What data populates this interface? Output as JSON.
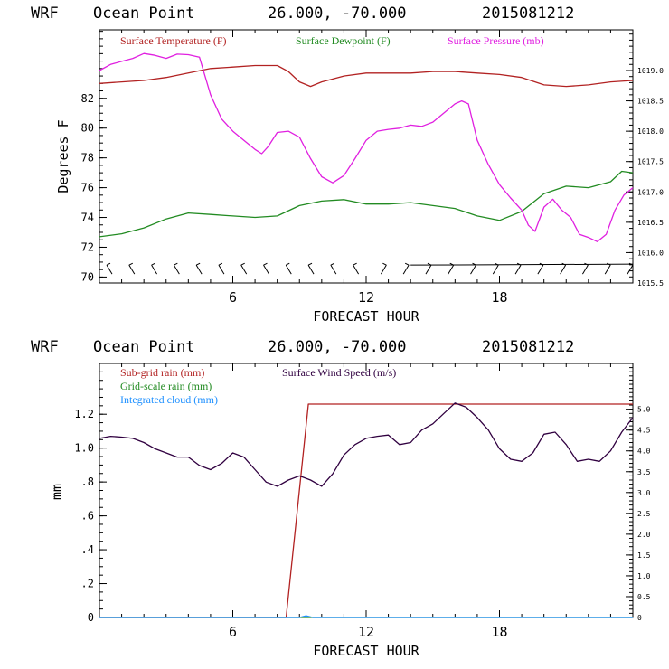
{
  "chart_data": [
    {
      "type": "line",
      "title": "WRF   Ocean Point   26.000, -70.000  2015081212",
      "title_parts": {
        "model": "WRF",
        "location": "Ocean Point",
        "coords": "26.000, -70.000",
        "date": "2015081212"
      },
      "xlabel": "FORECAST HOUR",
      "ylabel": "Degrees F",
      "xlim": [
        0,
        24
      ],
      "ylim": [
        69.6,
        86.6
      ],
      "y2lim": [
        1015.5,
        1019.67
      ],
      "x_ticks": [
        6,
        12,
        18
      ],
      "y_ticks": [
        70,
        72,
        74,
        76,
        78,
        80,
        82
      ],
      "y2_ticks": [
        {
          "value": 1015.5,
          "label": "1015.5"
        },
        {
          "value": 1016.0,
          "label": "1016.0"
        },
        {
          "value": 1016.5,
          "label": "1016.5"
        },
        {
          "value": 1017.0,
          "label": "1017.0"
        },
        {
          "value": 1017.5,
          "label": "1017.5"
        },
        {
          "value": 1018.0,
          "label": "1018.0"
        },
        {
          "value": 1018.5,
          "label": "1018.5"
        },
        {
          "value": 1019.0,
          "label": "1019.0"
        }
      ],
      "series": [
        {
          "name": "Surface Temperature (F)",
          "color": "#b22222",
          "axis": "left",
          "x": [
            0,
            1,
            2,
            3,
            4,
            5,
            6,
            7,
            8,
            8.5,
            9,
            9.5,
            10,
            11,
            12,
            13,
            14,
            15,
            16,
            17,
            18,
            19,
            20,
            21,
            22,
            23,
            24
          ],
          "y": [
            83.0,
            83.1,
            83.2,
            83.4,
            83.7,
            84.0,
            84.1,
            84.2,
            84.2,
            83.8,
            83.1,
            82.8,
            83.1,
            83.5,
            83.7,
            83.7,
            83.7,
            83.8,
            83.8,
            83.7,
            83.6,
            83.4,
            82.9,
            82.8,
            82.9,
            83.1,
            83.2
          ]
        },
        {
          "name": "Surface Dewpoint (F)",
          "color": "#228b22",
          "axis": "left",
          "x": [
            0,
            1,
            2,
            3,
            4,
            5,
            6,
            7,
            8,
            9,
            10,
            11,
            12,
            13,
            14,
            15,
            16,
            17,
            18,
            19,
            20,
            21,
            22,
            23,
            23.5,
            24
          ],
          "y": [
            72.7,
            72.9,
            73.3,
            73.9,
            74.3,
            74.2,
            74.1,
            74.0,
            74.1,
            74.8,
            75.1,
            75.2,
            74.9,
            74.9,
            75.0,
            74.8,
            74.6,
            74.1,
            73.8,
            74.4,
            75.6,
            76.1,
            76.0,
            76.4,
            77.1,
            77.0
          ]
        },
        {
          "name": "Surface Pressure (mb)",
          "color": "#e020e0",
          "axis": "right",
          "x": [
            0,
            0.5,
            1,
            1.5,
            2,
            2.5,
            3,
            3.5,
            4,
            4.5,
            5,
            5.5,
            6,
            6.5,
            7,
            7.3,
            7.6,
            8,
            8.5,
            9,
            9.5,
            10,
            10.5,
            11,
            11.5,
            12,
            12.5,
            13,
            13.5,
            14,
            14.5,
            15,
            15.5,
            16,
            16.3,
            16.6,
            17,
            17.5,
            18,
            18.5,
            19,
            19.3,
            19.6,
            20,
            20.4,
            20.8,
            21.2,
            21.6,
            22,
            22.4,
            22.8,
            23.2,
            23.6,
            24
          ],
          "y": [
            1019.0,
            1019.1,
            1019.15,
            1019.2,
            1019.28,
            1019.25,
            1019.2,
            1019.27,
            1019.26,
            1019.22,
            1018.6,
            1018.2,
            1018.0,
            1017.85,
            1017.7,
            1017.63,
            1017.75,
            1017.98,
            1018.0,
            1017.9,
            1017.55,
            1017.25,
            1017.15,
            1017.27,
            1017.55,
            1017.85,
            1018.0,
            1018.03,
            1018.05,
            1018.1,
            1018.08,
            1018.15,
            1018.3,
            1018.45,
            1018.5,
            1018.45,
            1017.85,
            1017.45,
            1017.12,
            1016.9,
            1016.7,
            1016.45,
            1016.35,
            1016.75,
            1016.88,
            1016.7,
            1016.58,
            1016.3,
            1016.25,
            1016.18,
            1016.3,
            1016.7,
            1016.95,
            1017.07
          ]
        }
      ],
      "wind_barbs": {
        "y_level": 70.5,
        "count": 24,
        "label": "wind barbs along bottom of upper panel"
      }
    },
    {
      "type": "line",
      "title": "WRF   Ocean Point   26.000, -70.000  2015081212",
      "title_parts": {
        "model": "WRF",
        "location": "Ocean Point",
        "coords": "26.000, -70.000",
        "date": "2015081212"
      },
      "xlabel": "FORECAST HOUR",
      "ylabel": "mm",
      "xlim": [
        0,
        24
      ],
      "ylim": [
        0,
        1.5
      ],
      "y2lim": [
        0,
        6.1
      ],
      "x_ticks": [
        6,
        12,
        18
      ],
      "y_ticks": [
        {
          "value": 0,
          "label": "0"
        },
        {
          "value": 0.2,
          "label": ".2"
        },
        {
          "value": 0.4,
          "label": ".4"
        },
        {
          "value": 0.6,
          "label": ".6"
        },
        {
          "value": 0.8,
          "label": ".8"
        },
        {
          "value": 1.0,
          "label": "1.0"
        },
        {
          "value": 1.2,
          "label": "1.2"
        }
      ],
      "y2_ticks": [
        {
          "value": 0,
          "label": "0"
        },
        {
          "value": 0.5,
          "label": "0.5"
        },
        {
          "value": 1.0,
          "label": "1.0"
        },
        {
          "value": 1.5,
          "label": "1.5"
        },
        {
          "value": 2.0,
          "label": "2.0"
        },
        {
          "value": 2.5,
          "label": "2.5"
        },
        {
          "value": 3.0,
          "label": "3.0"
        },
        {
          "value": 3.5,
          "label": "3.5"
        },
        {
          "value": 4.0,
          "label": "4.0"
        },
        {
          "value": 4.5,
          "label": "4.5"
        },
        {
          "value": 5.0,
          "label": "5.0"
        }
      ],
      "series": [
        {
          "name": "Sub-grid rain (mm)",
          "color": "#b22222",
          "axis": "left",
          "x": [
            0,
            8.4,
            9.4,
            24
          ],
          "y": [
            0,
            0,
            1.26,
            1.26
          ]
        },
        {
          "name": "Grid-scale rain (mm)",
          "color": "#228b22",
          "axis": "left",
          "x": [
            0,
            24
          ],
          "y": [
            0,
            0
          ]
        },
        {
          "name": "Integrated cloud (mm)",
          "color": "#1e90ff",
          "axis": "left",
          "x": [
            0,
            9.0,
            9.3,
            9.6,
            24
          ],
          "y": [
            0,
            0,
            0.01,
            0,
            0
          ]
        },
        {
          "name": "Surface Wind Speed (m/s)",
          "color": "#300040",
          "axis": "right",
          "x": [
            0,
            0.5,
            1,
            1.5,
            2,
            2.5,
            3,
            3.5,
            4,
            4.5,
            5,
            5.5,
            6,
            6.5,
            7,
            7.5,
            8,
            8.5,
            9,
            9.5,
            10,
            10.5,
            11,
            11.5,
            12,
            12.5,
            13,
            13.5,
            14,
            14.5,
            15,
            15.5,
            16,
            16.5,
            17,
            17.5,
            18,
            18.5,
            19,
            19.5,
            20,
            20.5,
            21,
            21.5,
            22,
            22.5,
            23,
            23.5,
            24
          ],
          "y": [
            4.3,
            4.35,
            4.33,
            4.3,
            4.2,
            4.05,
            3.95,
            3.85,
            3.85,
            3.65,
            3.55,
            3.7,
            3.95,
            3.85,
            3.55,
            3.25,
            3.15,
            3.3,
            3.4,
            3.3,
            3.15,
            3.45,
            3.9,
            4.15,
            4.3,
            4.35,
            4.38,
            4.15,
            4.2,
            4.5,
            4.65,
            4.9,
            5.15,
            5.05,
            4.8,
            4.5,
            4.05,
            3.8,
            3.75,
            3.95,
            4.4,
            4.45,
            4.15,
            3.75,
            3.8,
            3.75,
            4.0,
            4.45,
            4.8
          ]
        }
      ]
    }
  ]
}
